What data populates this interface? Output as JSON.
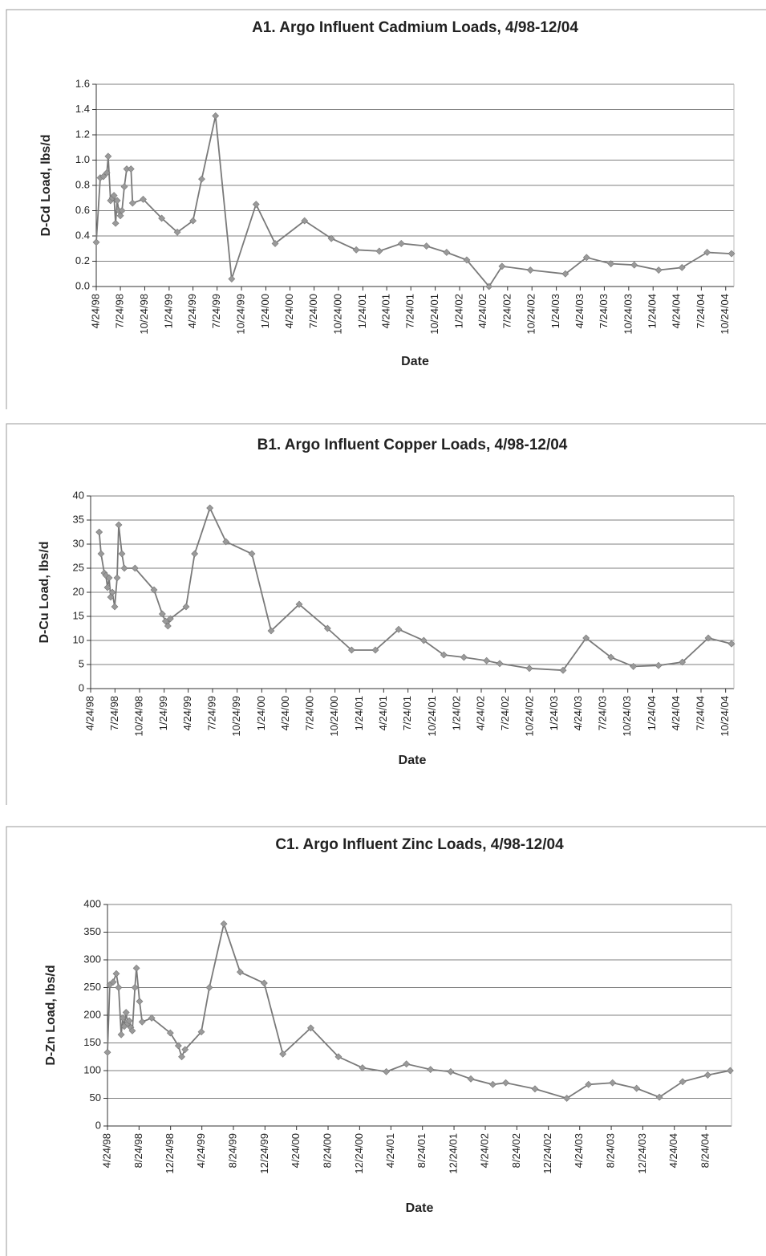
{
  "chart_data": [
    {
      "type": "line",
      "title": "A1.  Argo Influent Cadmium Loads, 4/98-12/04",
      "x_label": "Date",
      "y_label": "D-Cd Load, lbs/d",
      "x": [
        "1998-04-24",
        "1998-05-09",
        "1998-05-21",
        "1998-06-03",
        "1998-06-08",
        "1998-06-17",
        "1998-06-24",
        "1998-06-30",
        "1998-07-06",
        "1998-07-12",
        "1998-07-18",
        "1998-07-24",
        "1998-07-30",
        "1998-08-08",
        "1998-08-17",
        "1998-09-02",
        "1998-09-08",
        "1998-10-18",
        "1998-12-27",
        "1999-02-24",
        "1999-04-24",
        "1999-05-27",
        "1999-07-18",
        "1999-09-17",
        "1999-12-18",
        "2000-02-28",
        "2000-06-18",
        "2000-09-27",
        "2000-12-30",
        "2001-03-27",
        "2001-06-18",
        "2001-09-21",
        "2001-12-06",
        "2002-02-20",
        "2002-05-15",
        "2002-07-03",
        "2002-10-18",
        "2003-02-27",
        "2003-05-18",
        "2003-08-18",
        "2003-11-14",
        "2004-02-14",
        "2004-05-12",
        "2004-08-15",
        "2004-11-15"
      ],
      "values": [
        0.35,
        0.86,
        0.87,
        0.9,
        1.03,
        0.68,
        0.7,
        0.72,
        0.5,
        0.68,
        0.6,
        0.56,
        0.6,
        0.79,
        0.93,
        0.93,
        0.66,
        0.69,
        0.54,
        0.43,
        0.52,
        0.85,
        1.35,
        0.06,
        0.65,
        0.34,
        0.52,
        0.38,
        0.29,
        0.28,
        0.34,
        0.32,
        0.27,
        0.21,
        0.0,
        0.16,
        0.13,
        0.1,
        0.23,
        0.18,
        0.17,
        0.13,
        0.15,
        0.27,
        0.26
      ],
      "color": "#7a7a7a",
      "marker_color": "#9a9a9a",
      "grid": true,
      "xlim": [
        "1998-04-24",
        "2004-11-24"
      ],
      "xticks": [
        {
          "value": "1998-04-24",
          "label": "4/24/98"
        },
        {
          "value": "1998-07-24",
          "label": "7/24/98"
        },
        {
          "value": "1998-10-24",
          "label": "10/24/98"
        },
        {
          "value": "1999-01-24",
          "label": "1/24/99"
        },
        {
          "value": "1999-04-24",
          "label": "4/24/99"
        },
        {
          "value": "1999-07-24",
          "label": "7/24/99"
        },
        {
          "value": "1999-10-24",
          "label": "10/24/99"
        },
        {
          "value": "2000-01-24",
          "label": "1/24/00"
        },
        {
          "value": "2000-04-24",
          "label": "4/24/00"
        },
        {
          "value": "2000-07-24",
          "label": "7/24/00"
        },
        {
          "value": "2000-10-24",
          "label": "10/24/00"
        },
        {
          "value": "2001-01-24",
          "label": "1/24/01"
        },
        {
          "value": "2001-04-24",
          "label": "4/24/01"
        },
        {
          "value": "2001-07-24",
          "label": "7/24/01"
        },
        {
          "value": "2001-10-24",
          "label": "10/24/01"
        },
        {
          "value": "2002-01-24",
          "label": "1/24/02"
        },
        {
          "value": "2002-04-24",
          "label": "4/24/02"
        },
        {
          "value": "2002-07-24",
          "label": "7/24/02"
        },
        {
          "value": "2002-10-24",
          "label": "10/24/02"
        },
        {
          "value": "2003-01-24",
          "label": "1/24/03"
        },
        {
          "value": "2003-04-24",
          "label": "4/24/03"
        },
        {
          "value": "2003-07-24",
          "label": "7/24/03"
        },
        {
          "value": "2003-10-24",
          "label": "10/24/03"
        },
        {
          "value": "2004-01-24",
          "label": "1/24/04"
        },
        {
          "value": "2004-04-24",
          "label": "4/24/04"
        },
        {
          "value": "2004-07-24",
          "label": "7/24/04"
        },
        {
          "value": "2004-10-24",
          "label": "10/24/04"
        }
      ],
      "ylim": [
        0,
        1.6
      ],
      "yticks": [
        {
          "value": 0,
          "label": "0.0"
        },
        {
          "value": 0.2,
          "label": "0.2"
        },
        {
          "value": 0.4,
          "label": "0.4"
        },
        {
          "value": 0.6,
          "label": "0.6"
        },
        {
          "value": 0.8,
          "label": "0.8"
        },
        {
          "value": 1,
          "label": "1.0"
        },
        {
          "value": 1.2,
          "label": "1.2"
        },
        {
          "value": 1.4,
          "label": "1.4"
        },
        {
          "value": 1.6,
          "label": "1.6"
        }
      ]
    },
    {
      "type": "line",
      "title": "B1.  Argo Influent Copper Loads, 4/98-12/04",
      "x_label": "Date",
      "y_label": "D-Cu Load, lbs/d",
      "x": [
        "1998-05-26",
        "1998-06-02",
        "1998-06-14",
        "1998-06-20",
        "1998-06-26",
        "1998-07-02",
        "1998-07-08",
        "1998-07-14",
        "1998-07-23",
        "1998-08-01",
        "1998-08-07",
        "1998-08-19",
        "1998-08-28",
        "1998-10-07",
        "1998-12-17",
        "1999-01-17",
        "1999-01-29",
        "1999-02-07",
        "1999-02-16",
        "1999-04-16",
        "1999-05-18",
        "1999-07-14",
        "1999-09-12",
        "1999-12-18",
        "2000-02-28",
        "2000-06-12",
        "2000-09-26",
        "2000-12-25",
        "2001-03-24",
        "2001-06-19",
        "2001-09-21",
        "2001-12-05",
        "2002-02-18",
        "2002-05-14",
        "2002-07-02",
        "2002-10-21",
        "2003-02-24",
        "2003-05-21",
        "2003-08-22",
        "2003-11-14",
        "2004-02-16",
        "2004-05-15",
        "2004-08-20",
        "2004-11-15"
      ],
      "values": [
        32.5,
        28,
        24,
        23.5,
        21,
        23,
        19,
        20,
        17,
        23,
        34,
        28,
        25,
        25,
        20.5,
        15.5,
        14,
        13,
        14.5,
        17,
        28,
        37.5,
        30.5,
        28,
        12,
        17.5,
        12.5,
        8,
        8,
        12.3,
        10,
        7,
        6.5,
        5.8,
        5.2,
        4.2,
        3.8,
        10.5,
        6.5,
        4.6,
        4.8,
        5.5,
        10.5,
        9.3
      ],
      "color": "#7a7a7a",
      "marker_color": "#9a9a9a",
      "grid": true,
      "xlim": [
        "1998-04-24",
        "2004-11-24"
      ],
      "xticks": [
        {
          "value": "1998-04-24",
          "label": "4/24/98"
        },
        {
          "value": "1998-07-24",
          "label": "7/24/98"
        },
        {
          "value": "1998-10-24",
          "label": "10/24/98"
        },
        {
          "value": "1999-01-24",
          "label": "1/24/99"
        },
        {
          "value": "1999-04-24",
          "label": "4/24/99"
        },
        {
          "value": "1999-07-24",
          "label": "7/24/99"
        },
        {
          "value": "1999-10-24",
          "label": "10/24/99"
        },
        {
          "value": "2000-01-24",
          "label": "1/24/00"
        },
        {
          "value": "2000-04-24",
          "label": "4/24/00"
        },
        {
          "value": "2000-07-24",
          "label": "7/24/00"
        },
        {
          "value": "2000-10-24",
          "label": "10/24/00"
        },
        {
          "value": "2001-01-24",
          "label": "1/24/01"
        },
        {
          "value": "2001-04-24",
          "label": "4/24/01"
        },
        {
          "value": "2001-07-24",
          "label": "7/24/01"
        },
        {
          "value": "2001-10-24",
          "label": "10/24/01"
        },
        {
          "value": "2002-01-24",
          "label": "1/24/02"
        },
        {
          "value": "2002-04-24",
          "label": "4/24/02"
        },
        {
          "value": "2002-07-24",
          "label": "7/24/02"
        },
        {
          "value": "2002-10-24",
          "label": "10/24/02"
        },
        {
          "value": "2003-01-24",
          "label": "1/24/03"
        },
        {
          "value": "2003-04-24",
          "label": "4/24/03"
        },
        {
          "value": "2003-07-24",
          "label": "7/24/03"
        },
        {
          "value": "2003-10-24",
          "label": "10/24/03"
        },
        {
          "value": "2004-01-24",
          "label": "1/24/04"
        },
        {
          "value": "2004-04-24",
          "label": "4/24/04"
        },
        {
          "value": "2004-07-24",
          "label": "7/24/04"
        },
        {
          "value": "2004-10-24",
          "label": "10/24/04"
        }
      ],
      "ylim": [
        0,
        40
      ],
      "yticks": [
        0,
        5,
        10,
        15,
        20,
        25,
        30,
        35,
        40
      ]
    },
    {
      "type": "line",
      "title": "C1.  Argo Influent Zinc Loads, 4/98-12/04",
      "x_label": "Date",
      "y_label": "D-Zn Load, lbs/d",
      "x": [
        "1998-04-24",
        "1998-05-03",
        "1998-05-16",
        "1998-05-28",
        "1998-06-06",
        "1998-06-16",
        "1998-06-22",
        "1998-06-28",
        "1998-07-05",
        "1998-07-11",
        "1998-07-17",
        "1998-07-23",
        "1998-07-29",
        "1998-08-08",
        "1998-08-14",
        "1998-08-26",
        "1998-09-05",
        "1998-10-12",
        "1998-12-23",
        "1999-01-23",
        "1999-02-05",
        "1999-02-18",
        "1999-04-22",
        "1999-05-23",
        "1999-07-18",
        "1999-09-19",
        "1999-12-21",
        "2000-03-02",
        "2000-06-18",
        "2000-10-03",
        "2001-01-04",
        "2001-04-06",
        "2001-06-23",
        "2001-09-24",
        "2001-12-11",
        "2002-02-27",
        "2002-05-23",
        "2002-07-12",
        "2002-11-02",
        "2003-03-05",
        "2003-05-28",
        "2003-08-29",
        "2003-11-30",
        "2004-02-26",
        "2004-05-26",
        "2004-08-31",
        "2004-11-26"
      ],
      "values": [
        133,
        255,
        260,
        275,
        250,
        165,
        195,
        180,
        205,
        185,
        190,
        178,
        172,
        250,
        285,
        225,
        188,
        195,
        168,
        145,
        125,
        138,
        170,
        250,
        365,
        278,
        258,
        130,
        177,
        125,
        105,
        98,
        112,
        102,
        98,
        85,
        75,
        78,
        67,
        50,
        75,
        78,
        68,
        52,
        80,
        92,
        100
      ],
      "color": "#7a7a7a",
      "marker_color": "#9a9a9a",
      "grid": true,
      "xlim": [
        "1998-04-24",
        "2004-12-01"
      ],
      "xticks": [
        {
          "value": "1998-04-24",
          "label": "4/24/98"
        },
        {
          "value": "1998-08-24",
          "label": "8/24/98"
        },
        {
          "value": "1998-12-24",
          "label": "12/24/98"
        },
        {
          "value": "1999-04-24",
          "label": "4/24/99"
        },
        {
          "value": "1999-08-24",
          "label": "8/24/99"
        },
        {
          "value": "1999-12-24",
          "label": "12/24/99"
        },
        {
          "value": "2000-04-24",
          "label": "4/24/00"
        },
        {
          "value": "2000-08-24",
          "label": "8/24/00"
        },
        {
          "value": "2000-12-24",
          "label": "12/24/00"
        },
        {
          "value": "2001-04-24",
          "label": "4/24/01"
        },
        {
          "value": "2001-08-24",
          "label": "8/24/01"
        },
        {
          "value": "2001-12-24",
          "label": "12/24/01"
        },
        {
          "value": "2002-04-24",
          "label": "4/24/02"
        },
        {
          "value": "2002-08-24",
          "label": "8/24/02"
        },
        {
          "value": "2002-12-24",
          "label": "12/24/02"
        },
        {
          "value": "2003-04-24",
          "label": "4/24/03"
        },
        {
          "value": "2003-08-24",
          "label": "8/24/03"
        },
        {
          "value": "2003-12-24",
          "label": "12/24/03"
        },
        {
          "value": "2004-04-24",
          "label": "4/24/04"
        },
        {
          "value": "2004-08-24",
          "label": "8/24/04"
        }
      ],
      "ylim": [
        0,
        400
      ],
      "yticks": [
        0,
        50,
        100,
        150,
        200,
        250,
        300,
        350,
        400
      ]
    }
  ]
}
